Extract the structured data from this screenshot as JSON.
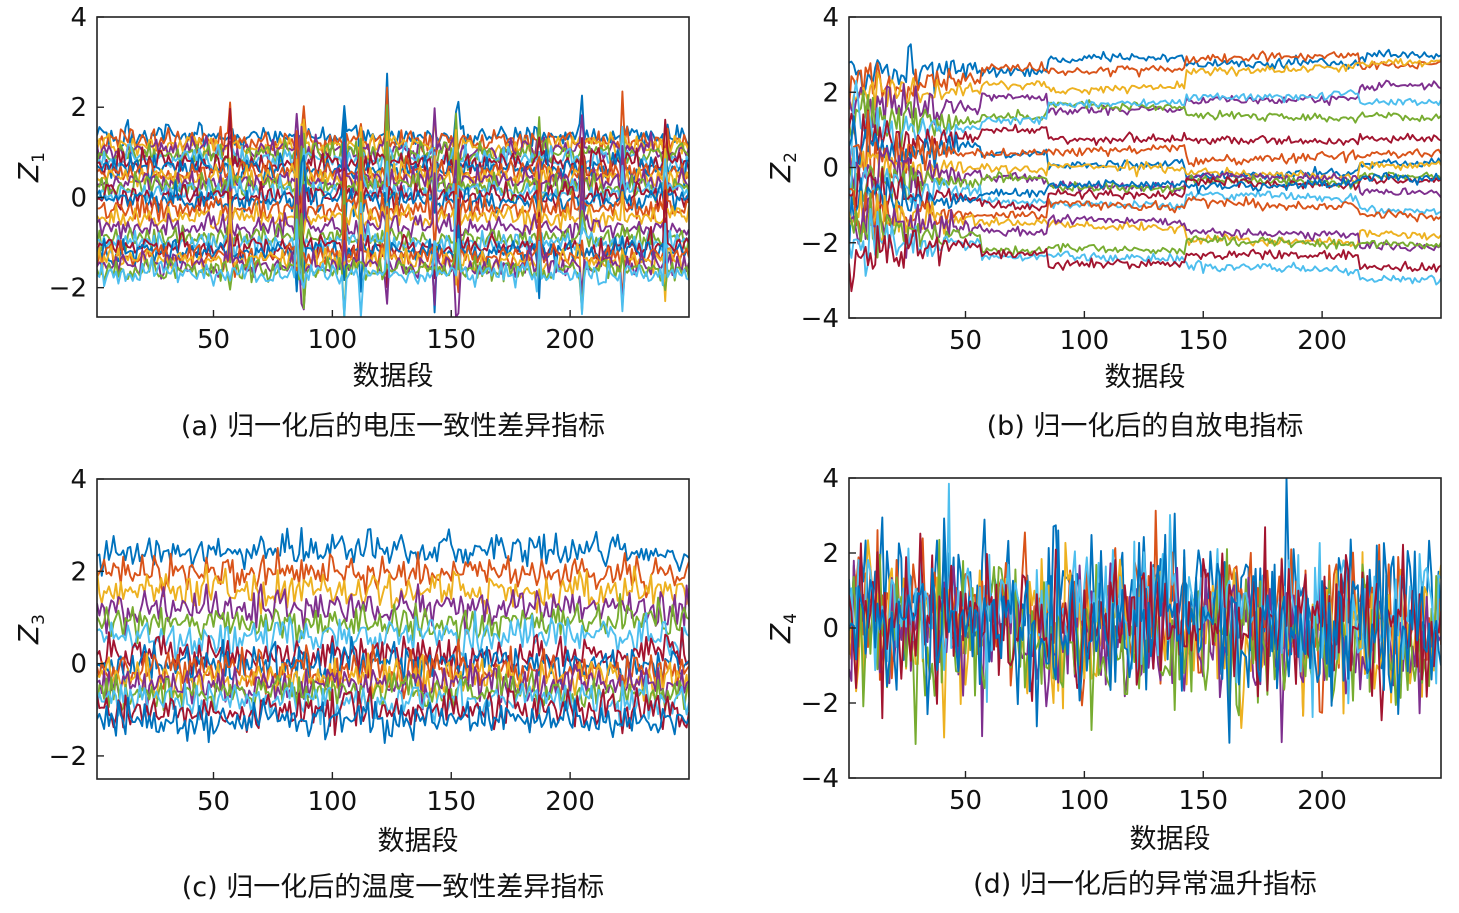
{
  "chart_data": [
    {
      "type": "line",
      "panel": "a",
      "caption": "(a) 归一化后的电压一致性差异指标",
      "xlabel": "数据段",
      "ylabel_main": "Z",
      "ylabel_sub": "1",
      "xlim": [
        1,
        250
      ],
      "ylim": [
        -2.65,
        4
      ],
      "xticks": [
        50,
        100,
        150,
        200
      ],
      "xtick_labels": [
        "50",
        "100",
        "150",
        "200"
      ],
      "yticks": [
        4,
        2,
        0,
        -2
      ],
      "ytick_labels": [
        "4",
        "2",
        "0",
        "−2"
      ],
      "n_points": 250,
      "levels": [
        1.35,
        1.25,
        1.15,
        1.05,
        0.95,
        0.85,
        0.75,
        0.65,
        0.55,
        0.45,
        0.35,
        0.25,
        0.15,
        0.05,
        -0.05,
        -0.25,
        -0.45,
        -0.65,
        -0.9,
        -1.0,
        -1.1,
        -1.2,
        -1.3,
        -1.4,
        -1.5,
        -1.6,
        -1.7
      ],
      "noise": 0.13,
      "spike_positions": [
        57,
        85,
        87,
        88,
        105,
        112,
        123,
        143,
        152,
        153,
        187,
        205,
        222,
        240
      ],
      "spike_amplitude": 1.2,
      "drift": 0.0,
      "step_positions": []
    },
    {
      "type": "line",
      "panel": "b",
      "caption": "(b) 归一化后的自放电指标",
      "xlabel": "数据段",
      "ylabel_main": "Z",
      "ylabel_sub": "2",
      "xlim": [
        1,
        250
      ],
      "ylim": [
        -4,
        4
      ],
      "xticks": [
        50,
        100,
        150,
        200
      ],
      "xtick_labels": [
        "50",
        "100",
        "150",
        "200"
      ],
      "yticks": [
        4,
        2,
        0,
        -2,
        -4
      ],
      "ytick_labels": [
        "4",
        "2",
        "0",
        "−2",
        "−4"
      ],
      "n_points": 250,
      "levels": [
        2.6,
        2.2,
        1.9,
        1.6,
        1.3,
        1.0,
        0.8,
        0.5,
        0.3,
        0.1,
        -0.1,
        -0.3,
        -0.5,
        -0.7,
        -0.9,
        -1.1,
        -1.3,
        -1.5,
        -1.7,
        -1.9,
        -2.1
      ],
      "noise": 0.06,
      "spike_positions": [],
      "spike_amplitude": 0.0,
      "drift": 0.6,
      "step_positions": [
        57,
        85,
        143,
        216
      ]
    },
    {
      "type": "line",
      "panel": "c",
      "caption": "(c) 归一化后的温度一致性差异指标",
      "xlabel": "数据段",
      "ylabel_main": "Z",
      "ylabel_sub": "3",
      "xlim": [
        1,
        250
      ],
      "ylim": [
        -2.5,
        4
      ],
      "xticks": [
        50,
        100,
        150,
        200
      ],
      "xtick_labels": [
        "50",
        "100",
        "150",
        "200"
      ],
      "yticks": [
        4,
        2,
        0,
        -2
      ],
      "ytick_labels": [
        "4",
        "2",
        "0",
        "−2"
      ],
      "n_points": 250,
      "levels": [
        2.45,
        1.95,
        1.6,
        1.2,
        0.9,
        0.6,
        0.2,
        0.0,
        -0.15,
        -0.3,
        -0.45,
        -0.6,
        -0.8,
        -1.0,
        -1.2
      ],
      "noise": 0.2,
      "spike_positions": [],
      "spike_amplitude": 0.0,
      "drift": 0.0,
      "step_positions": []
    },
    {
      "type": "line",
      "panel": "d",
      "caption": "(d) 归一化后的异常温升指标",
      "xlabel": "数据段",
      "ylabel_main": "Z",
      "ylabel_sub": "4",
      "xlim": [
        1,
        250
      ],
      "ylim": [
        -4,
        4
      ],
      "xticks": [
        50,
        100,
        150,
        200
      ],
      "xtick_labels": [
        "50",
        "100",
        "150",
        "200"
      ],
      "yticks": [
        4,
        2,
        0,
        -2,
        -4
      ],
      "ytick_labels": [
        "4",
        "2",
        "0",
        "−2",
        "−4"
      ],
      "n_points": 250,
      "levels": [
        0.6,
        0.3,
        0.0,
        -0.2,
        -0.4,
        0.4,
        0.1,
        -0.1
      ],
      "noise": 0.95,
      "spike_positions": [],
      "spike_amplitude": 0.0,
      "drift": 0.0,
      "step_positions": []
    }
  ],
  "palette": [
    "#0072BD",
    "#D95319",
    "#EDB120",
    "#7E2F8E",
    "#77AC30",
    "#4DBEEE",
    "#A2142F"
  ]
}
